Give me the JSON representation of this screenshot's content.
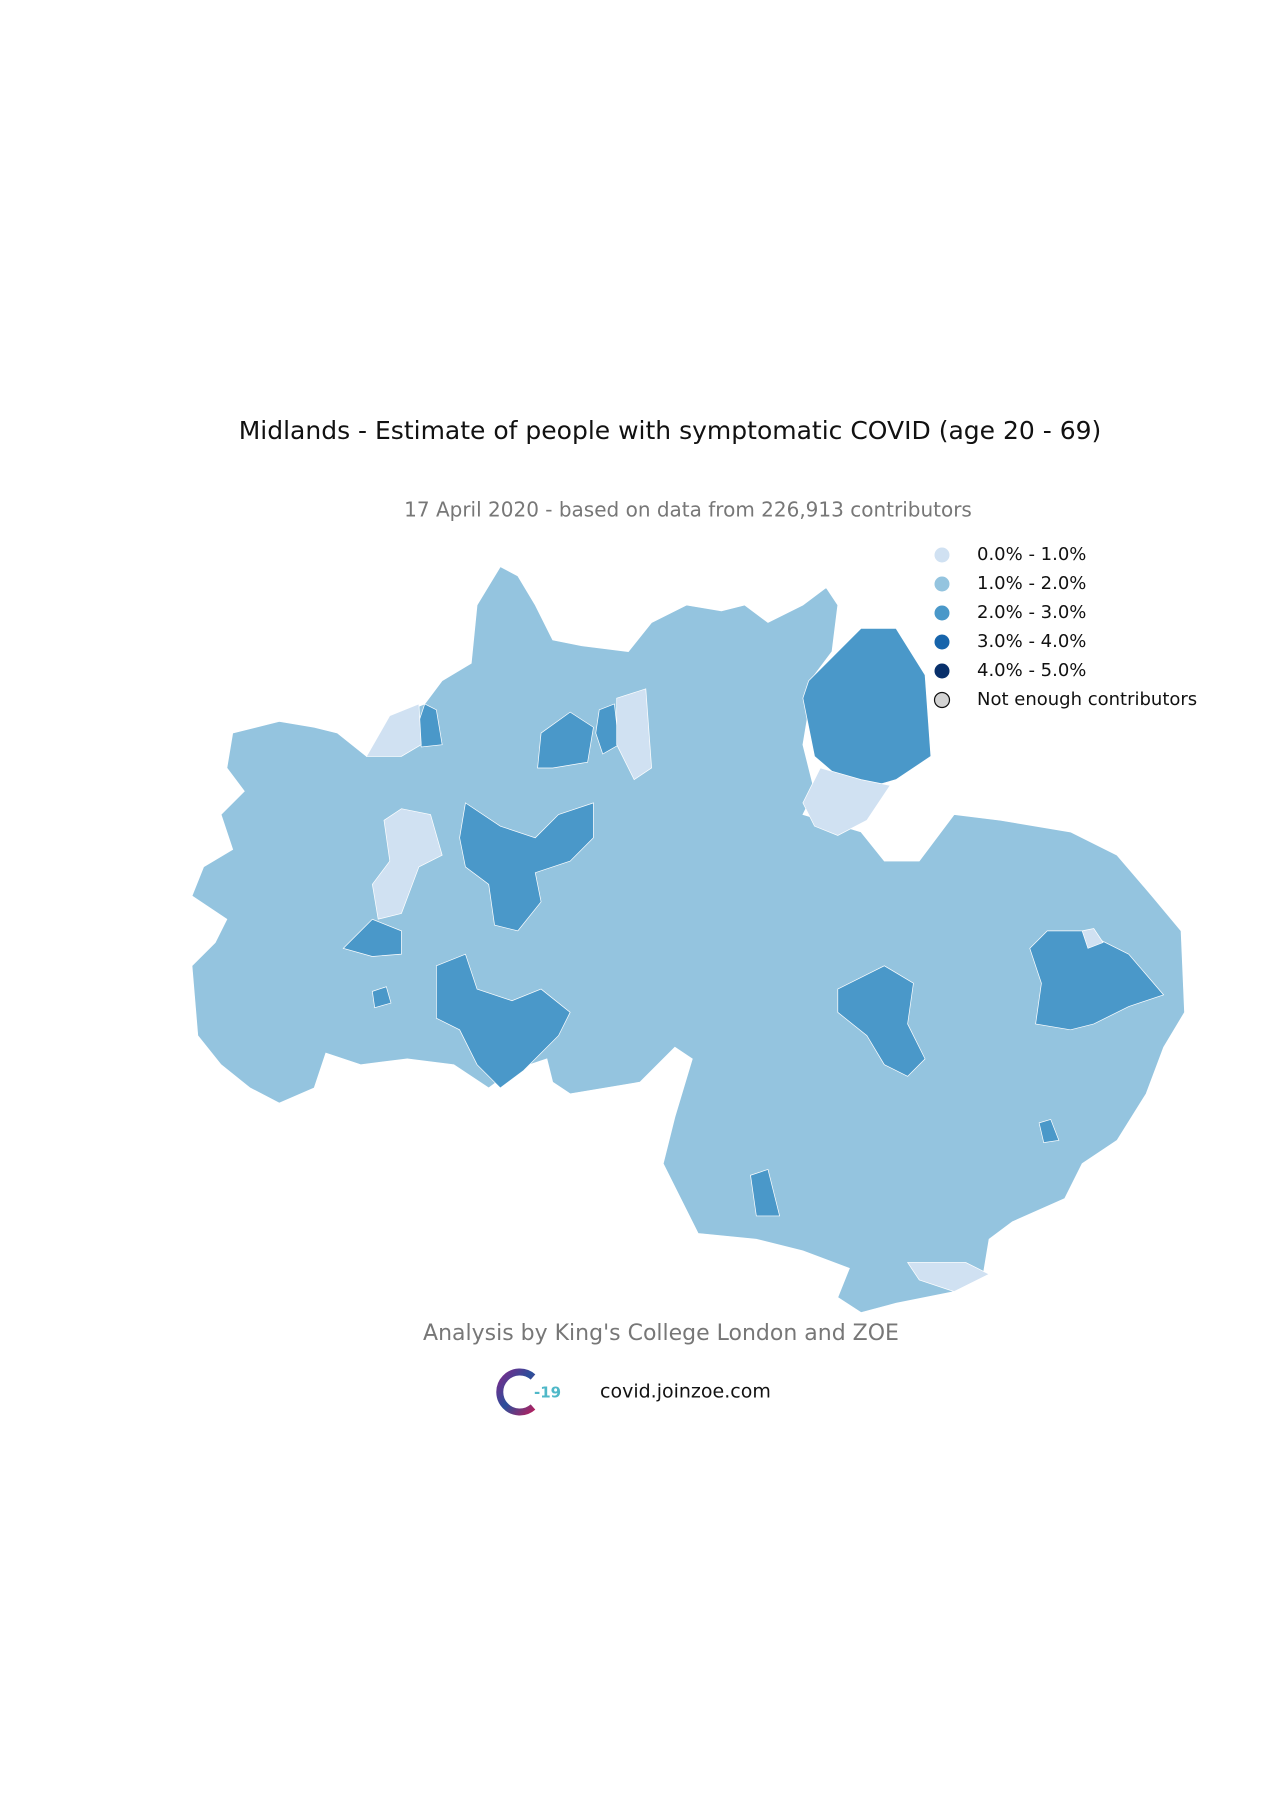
{
  "title": "Midlands - Estimate of people with symptomatic COVID (age 20 - 69)",
  "subtitle": "17 April 2020 - based on data from 226,913 contributors",
  "legend": [
    {
      "label": "0.0% - 1.0%",
      "color": "#d0e1f2"
    },
    {
      "label": "1.0% - 2.0%",
      "color": "#94c4df"
    },
    {
      "label": "2.0% - 3.0%",
      "color": "#4a98c9"
    },
    {
      "label": "3.0% - 4.0%",
      "color": "#1764ab"
    },
    {
      "label": "4.0% - 5.0%",
      "color": "#08306b"
    },
    {
      "label": "Not enough contributors",
      "color": "#d3d3d3"
    }
  ],
  "footer": {
    "credit": "Analysis by King's College London and ZOE",
    "logo_text": "-19",
    "url": "covid.joinzoe.com"
  }
}
